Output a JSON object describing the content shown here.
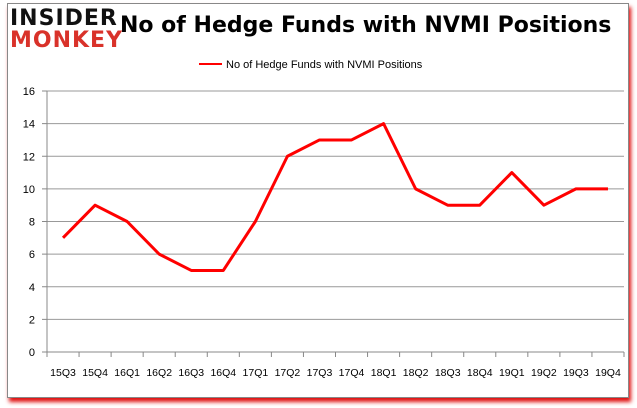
{
  "logo": {
    "line1": "INSIDER",
    "line2": "MONKEY"
  },
  "chart_data": {
    "type": "line",
    "title": "No of Hedge Funds with NVMI Positions",
    "categories": [
      "15Q3",
      "15Q4",
      "16Q1",
      "16Q2",
      "16Q3",
      "16Q4",
      "17Q1",
      "17Q2",
      "17Q3",
      "17Q4",
      "18Q1",
      "18Q2",
      "18Q3",
      "18Q4",
      "19Q1",
      "19Q2",
      "19Q3",
      "19Q4"
    ],
    "series": [
      {
        "name": "No of Hedge Funds with NVMI Positions",
        "color": "#ff0000",
        "values": [
          7,
          9,
          8,
          6,
          5,
          5,
          8,
          12,
          13,
          13,
          14,
          10,
          9,
          9,
          11,
          9,
          10,
          10
        ]
      }
    ],
    "ylim": [
      0,
      16
    ],
    "yticks": [
      0,
      2,
      4,
      6,
      8,
      10,
      12,
      14,
      16
    ],
    "grid": true,
    "legend": "top-center",
    "xlabel": "",
    "ylabel": ""
  }
}
